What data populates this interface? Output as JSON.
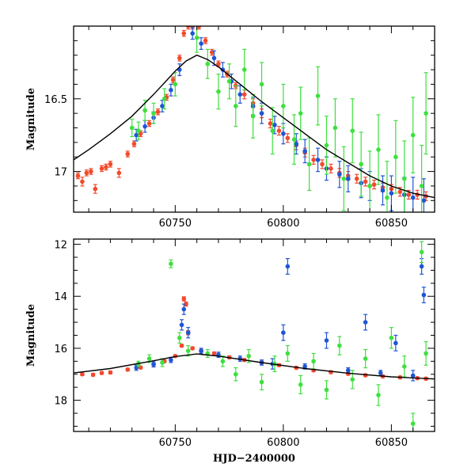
{
  "chart_data": [
    {
      "type": "scatter",
      "panel": "top",
      "xlabel": "",
      "ylabel": "Magnitude",
      "xlim": [
        60703,
        60870
      ],
      "ylim": [
        17.28,
        16.0
      ],
      "y_inverted": true,
      "x_ticks": [
        60750,
        60800,
        60850
      ],
      "x_tick_labels": [
        "60750",
        "60800",
        "60850"
      ],
      "y_ticks": [
        16.5,
        17.0
      ],
      "y_tick_labels": [
        "16.5",
        "17"
      ],
      "grid": false,
      "legend": "none",
      "series_colors": {
        "blue": "#1f56d6",
        "green": "#3ee03e",
        "red": "#f24a2c",
        "model": "#000000"
      },
      "model_curve": {
        "x": [
          60703,
          60710,
          60720,
          60730,
          60740,
          60745,
          60750,
          60755,
          60760,
          60765,
          60770,
          60780,
          60790,
          60800,
          60810,
          60820,
          60830,
          60840,
          60850,
          60860,
          60870
        ],
        "y": [
          16.92,
          16.85,
          16.74,
          16.62,
          16.47,
          16.39,
          16.31,
          16.24,
          16.2,
          16.23,
          16.28,
          16.4,
          16.52,
          16.63,
          16.74,
          16.85,
          16.94,
          17.03,
          17.1,
          17.15,
          17.18
        ]
      },
      "series": [
        {
          "color": "red",
          "x": [
            60705,
            60707,
            60709,
            60711,
            60713,
            60716,
            60718,
            60720,
            60724,
            60728,
            60731,
            60734,
            60738,
            60742,
            60746,
            60749,
            60752,
            60754,
            60756,
            60758,
            60761,
            60764,
            60767,
            60770,
            60774,
            60778,
            60782,
            60786,
            60790,
            60794,
            60798,
            60802,
            60806,
            60810,
            60814,
            60818,
            60822,
            60826,
            60830,
            60834,
            60838,
            60842,
            60846,
            60850,
            60854,
            60858,
            60862,
            60866
          ],
          "y": [
            17.03,
            17.07,
            17.01,
            17.0,
            17.12,
            16.98,
            16.97,
            16.95,
            17.01,
            16.88,
            16.81,
            16.74,
            16.67,
            16.59,
            16.49,
            16.37,
            16.22,
            16.05,
            16.0,
            16.0,
            16.0,
            16.1,
            16.18,
            16.26,
            16.33,
            16.41,
            16.47,
            16.53,
            16.6,
            16.67,
            16.72,
            16.77,
            16.82,
            16.87,
            16.92,
            16.95,
            16.98,
            17.01,
            17.03,
            17.05,
            17.07,
            17.09,
            17.11,
            17.12,
            17.14,
            17.16,
            17.16,
            17.17
          ],
          "err": [
            0.02,
            0.03,
            0.02,
            0.02,
            0.03,
            0.02,
            0.02,
            0.02,
            0.03,
            0.02,
            0.02,
            0.02,
            0.02,
            0.02,
            0.02,
            0.02,
            0.02,
            0.02,
            0.02,
            0.02,
            0.02,
            0.02,
            0.02,
            0.02,
            0.02,
            0.02,
            0.03,
            0.03,
            0.03,
            0.03,
            0.03,
            0.03,
            0.03,
            0.03,
            0.03,
            0.03,
            0.03,
            0.03,
            0.03,
            0.03,
            0.03,
            0.03,
            0.03,
            0.03,
            0.03,
            0.03,
            0.03,
            0.03
          ]
        },
        {
          "color": "blue",
          "x": [
            60732,
            60736,
            60740,
            60744,
            60748,
            60752,
            60758,
            60762,
            60768,
            60772,
            60776,
            60780,
            60786,
            60790,
            60796,
            60800,
            60806,
            60810,
            60816,
            60820,
            60826,
            60830,
            60836,
            60840,
            60846,
            60850,
            60856,
            60860,
            60865
          ],
          "y": [
            16.75,
            16.69,
            16.63,
            16.55,
            16.44,
            16.3,
            16.05,
            16.12,
            16.22,
            16.3,
            16.38,
            16.47,
            16.55,
            16.6,
            16.68,
            16.74,
            16.81,
            16.86,
            16.92,
            16.98,
            17.02,
            17.05,
            17.08,
            17.1,
            17.13,
            17.15,
            17.16,
            17.18,
            17.2
          ],
          "err": [
            0.04,
            0.04,
            0.04,
            0.04,
            0.04,
            0.04,
            0.04,
            0.04,
            0.05,
            0.05,
            0.05,
            0.06,
            0.06,
            0.07,
            0.06,
            0.07,
            0.07,
            0.08,
            0.08,
            0.08,
            0.09,
            0.09,
            0.1,
            0.1,
            0.1,
            0.12,
            0.12,
            0.14,
            0.15
          ]
        },
        {
          "color": "green",
          "x": [
            60730,
            60733,
            60736,
            60740,
            60745,
            60750,
            60760,
            60765,
            60770,
            60775,
            60778,
            60782,
            60786,
            60790,
            60795,
            60800,
            60805,
            60808,
            60812,
            60816,
            60820,
            60824,
            60828,
            60832,
            60836,
            60840,
            60844,
            60848,
            60852,
            60856,
            60860,
            60864,
            60866
          ],
          "y": [
            16.7,
            16.72,
            16.58,
            16.6,
            16.5,
            16.4,
            16.08,
            16.26,
            16.45,
            16.38,
            16.55,
            16.3,
            16.62,
            16.4,
            16.72,
            16.55,
            16.78,
            16.6,
            16.95,
            16.48,
            16.82,
            16.7,
            17.05,
            16.72,
            16.95,
            17.1,
            16.85,
            17.18,
            16.9,
            17.05,
            16.75,
            17.1,
            16.6
          ],
          "err": [
            0.06,
            0.06,
            0.07,
            0.07,
            0.07,
            0.08,
            0.1,
            0.1,
            0.12,
            0.12,
            0.14,
            0.14,
            0.15,
            0.15,
            0.16,
            0.15,
            0.17,
            0.18,
            0.18,
            0.2,
            0.2,
            0.2,
            0.22,
            0.22,
            0.22,
            0.24,
            0.24,
            0.25,
            0.25,
            0.26,
            0.26,
            0.28,
            0.28
          ]
        }
      ]
    },
    {
      "type": "scatter",
      "panel": "bottom",
      "xlabel": "HJD−2400000",
      "ylabel": "Magnitude",
      "xlim": [
        60703,
        60870
      ],
      "ylim": [
        19.2,
        11.8
      ],
      "y_inverted": true,
      "x_ticks": [
        60750,
        60800,
        60850
      ],
      "x_tick_labels": [
        "60750",
        "60800",
        "60850"
      ],
      "y_ticks": [
        12,
        14,
        16,
        18
      ],
      "y_tick_labels": [
        "12",
        "14",
        "16",
        "18"
      ],
      "grid": false,
      "legend": "none",
      "model_curve": {
        "x": [
          60703,
          60720,
          60740,
          60750,
          60760,
          60770,
          60790,
          60810,
          60830,
          60850,
          60870
        ],
        "y": [
          16.95,
          16.78,
          16.48,
          16.32,
          16.22,
          16.3,
          16.55,
          16.78,
          16.96,
          17.1,
          17.18
        ]
      },
      "series": [
        {
          "color": "red",
          "x": [
            60707,
            60712,
            60716,
            60720,
            60728,
            60734,
            60740,
            60745,
            60750,
            60753,
            60754,
            60755,
            60756,
            60758,
            60762,
            60768,
            60775,
            60782,
            60790,
            60798,
            60806,
            60814,
            60822,
            60830,
            60838,
            60846,
            60854,
            60862,
            60866
          ],
          "y": [
            17.0,
            17.02,
            16.95,
            16.93,
            16.82,
            16.74,
            16.62,
            16.5,
            16.3,
            15.9,
            14.1,
            14.3,
            15.4,
            16.0,
            16.1,
            16.2,
            16.35,
            16.45,
            16.55,
            16.65,
            16.75,
            16.85,
            16.92,
            16.98,
            17.04,
            17.08,
            17.12,
            17.15,
            17.17
          ],
          "err": [
            0.05,
            0.05,
            0.05,
            0.05,
            0.05,
            0.05,
            0.05,
            0.05,
            0.05,
            0.05,
            0.08,
            0.08,
            0.08,
            0.05,
            0.05,
            0.05,
            0.05,
            0.05,
            0.05,
            0.05,
            0.05,
            0.05,
            0.05,
            0.05,
            0.05,
            0.05,
            0.05,
            0.05,
            0.05
          ]
        },
        {
          "color": "blue",
          "x": [
            60732,
            60740,
            60748,
            60753,
            60754,
            60756,
            60762,
            60770,
            60780,
            60790,
            60795,
            60800,
            60802,
            60810,
            60820,
            60830,
            60838,
            60845,
            60852,
            60860,
            60864,
            60865
          ],
          "y": [
            16.75,
            16.62,
            16.45,
            15.1,
            14.5,
            15.4,
            16.1,
            16.25,
            16.4,
            16.55,
            16.6,
            15.4,
            12.85,
            16.7,
            15.7,
            16.85,
            15.0,
            16.95,
            15.8,
            17.05,
            12.85,
            13.95
          ],
          "err": [
            0.1,
            0.1,
            0.1,
            0.2,
            0.2,
            0.2,
            0.1,
            0.1,
            0.1,
            0.1,
            0.2,
            0.3,
            0.3,
            0.1,
            0.3,
            0.1,
            0.3,
            0.1,
            0.3,
            0.2,
            0.3,
            0.3
          ]
        },
        {
          "color": "green",
          "x": [
            60733,
            60738,
            60744,
            60748,
            60752,
            60756,
            60765,
            60772,
            60778,
            60784,
            60790,
            60796,
            60802,
            60808,
            60814,
            60820,
            60826,
            60832,
            60838,
            60844,
            60850,
            60856,
            60860,
            60864,
            60866
          ],
          "y": [
            16.6,
            16.4,
            16.55,
            12.75,
            15.6,
            16.1,
            16.2,
            16.5,
            17.0,
            16.3,
            17.3,
            16.6,
            16.2,
            17.4,
            16.5,
            17.6,
            15.9,
            17.2,
            16.4,
            17.8,
            15.6,
            16.7,
            18.9,
            12.3,
            16.2
          ],
          "err": [
            0.1,
            0.15,
            0.15,
            0.15,
            0.2,
            0.2,
            0.15,
            0.2,
            0.25,
            0.25,
            0.3,
            0.3,
            0.3,
            0.35,
            0.3,
            0.35,
            0.35,
            0.35,
            0.35,
            0.4,
            0.4,
            0.4,
            0.4,
            0.4,
            0.45
          ]
        }
      ]
    }
  ]
}
